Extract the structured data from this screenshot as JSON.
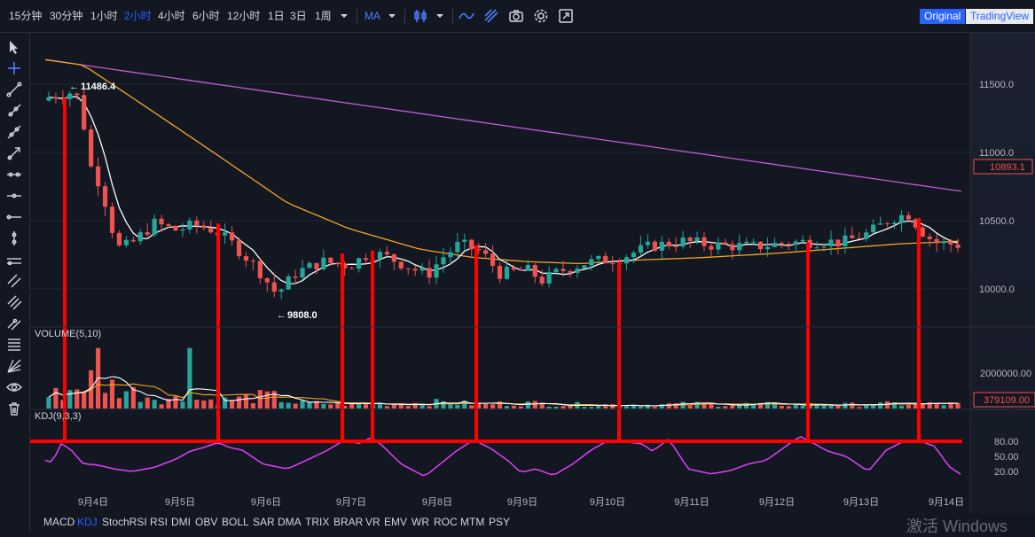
{
  "toolbar": {
    "intervals": [
      "15分钟",
      "30分钟",
      "1小时",
      "2小时",
      "4小时",
      "6小时",
      "12小时",
      "1日",
      "3日",
      "1周"
    ],
    "active_interval": "2小时",
    "indicator_menu": "MA",
    "view_original": "Original",
    "view_tradingview": "TradingView"
  },
  "price_axis": {
    "ticks": [
      "11500.0",
      "11000.0",
      "10500.0",
      "10000.0"
    ],
    "current_price": "10893.1"
  },
  "annotations": {
    "high": "11486.4",
    "low": "9808.0"
  },
  "volume_pane": {
    "title": "VOLUME(5,10)",
    "tick": "2000000.00",
    "current_volume": "379109.00"
  },
  "kdj_pane": {
    "title": "KDJ(9,3,3)",
    "ticks": [
      "80.00",
      "50.00",
      "20.00"
    ]
  },
  "time_axis": [
    "9月4日",
    "9月5日",
    "9月6日",
    "9月7日",
    "9月8日",
    "9月9日",
    "9月10日",
    "9月11日",
    "9月12日",
    "9月13日",
    "9月14日"
  ],
  "bottom_indicators": [
    "MACD",
    "KDJ",
    "StochRSI",
    "RSI",
    "DMI",
    "OBV",
    "BOLL",
    "SAR",
    "DMA",
    "TRIX",
    "BRAR",
    "VR",
    "EMV",
    "WR",
    "ROC",
    "MTM",
    "PSY"
  ],
  "active_bottom_indicator": "KDJ",
  "watermark": "激活 Windows",
  "colors": {
    "background": "#131722",
    "up": "#26a69a",
    "down": "#ef5350",
    "ma_white": "#ffffff",
    "ma_orange": "#f5a623",
    "ma_purple": "#c45ad6",
    "kdj_line": "#e040fb",
    "markup": "#ff0000",
    "accent": "#2962ff"
  },
  "chart_data": {
    "type": "candlestick",
    "price_range": [
      9700,
      11700
    ],
    "kdj_range": [
      0,
      100
    ],
    "ma_slow_start": 11680,
    "ma_slow_end": 10715,
    "markup_kdj_level": 80
  }
}
